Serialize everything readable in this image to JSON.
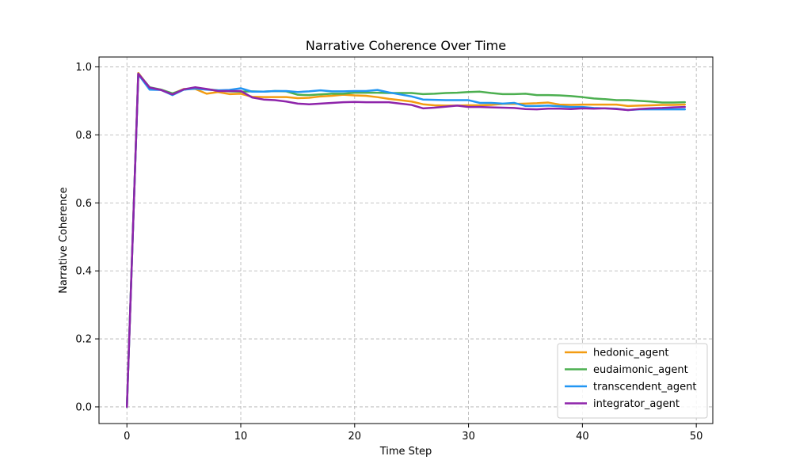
{
  "chart_data": {
    "type": "line",
    "title": "Narrative Coherence Over Time",
    "xlabel": "Time Step",
    "ylabel": "Narrative Coherence",
    "xlim": [
      -2.45,
      51.45
    ],
    "ylim": [
      -0.049,
      1.029
    ],
    "xticks": [
      0,
      10,
      20,
      30,
      40,
      50
    ],
    "yticks": [
      0.0,
      0.2,
      0.4,
      0.6,
      0.8,
      1.0
    ],
    "xtick_labels": [
      "0",
      "10",
      "20",
      "30",
      "40",
      "50"
    ],
    "ytick_labels": [
      "0.0",
      "0.2",
      "0.4",
      "0.6",
      "0.8",
      "1.0"
    ],
    "grid": true,
    "legend_position": "lower-right",
    "x": [
      0,
      1,
      2,
      3,
      4,
      5,
      6,
      7,
      8,
      9,
      10,
      11,
      12,
      13,
      14,
      15,
      16,
      17,
      18,
      19,
      20,
      21,
      22,
      23,
      24,
      25,
      26,
      27,
      28,
      29,
      30,
      31,
      32,
      33,
      34,
      35,
      36,
      37,
      38,
      39,
      40,
      41,
      42,
      43,
      44,
      45,
      46,
      47,
      48,
      49
    ],
    "series": [
      {
        "name": "hedonic_agent",
        "color": "#f39c12",
        "values": [
          0.0,
          0.982,
          0.938,
          0.933,
          0.921,
          0.935,
          0.935,
          0.921,
          0.926,
          0.92,
          0.921,
          0.912,
          0.911,
          0.911,
          0.911,
          0.908,
          0.909,
          0.913,
          0.915,
          0.918,
          0.916,
          0.915,
          0.911,
          0.906,
          0.902,
          0.898,
          0.89,
          0.887,
          0.886,
          0.886,
          0.887,
          0.887,
          0.888,
          0.891,
          0.891,
          0.892,
          0.893,
          0.895,
          0.889,
          0.888,
          0.889,
          0.889,
          0.889,
          0.889,
          0.885,
          0.886,
          0.887,
          0.888,
          0.888,
          0.889
        ]
      },
      {
        "name": "eudaimonic_agent",
        "color": "#4caf50",
        "values": [
          0.0,
          0.98,
          0.94,
          0.933,
          0.922,
          0.933,
          0.938,
          0.934,
          0.931,
          0.928,
          0.927,
          0.928,
          0.927,
          0.929,
          0.928,
          0.918,
          0.917,
          0.919,
          0.921,
          0.921,
          0.924,
          0.924,
          0.924,
          0.923,
          0.923,
          0.923,
          0.92,
          0.921,
          0.923,
          0.924,
          0.926,
          0.927,
          0.923,
          0.92,
          0.92,
          0.921,
          0.917,
          0.917,
          0.916,
          0.914,
          0.911,
          0.907,
          0.905,
          0.902,
          0.902,
          0.9,
          0.898,
          0.895,
          0.895,
          0.896
        ]
      },
      {
        "name": "transcendent_agent",
        "color": "#2196f3",
        "values": [
          0.0,
          0.978,
          0.933,
          0.932,
          0.917,
          0.933,
          0.936,
          0.933,
          0.931,
          0.932,
          0.937,
          0.927,
          0.927,
          0.929,
          0.929,
          0.926,
          0.928,
          0.931,
          0.928,
          0.928,
          0.929,
          0.929,
          0.932,
          0.925,
          0.919,
          0.913,
          0.904,
          0.903,
          0.902,
          0.902,
          0.902,
          0.894,
          0.894,
          0.892,
          0.894,
          0.885,
          0.885,
          0.886,
          0.884,
          0.882,
          0.882,
          0.879,
          0.878,
          0.877,
          0.873,
          0.875,
          0.875,
          0.875,
          0.875,
          0.875
        ]
      },
      {
        "name": "integrator_agent",
        "color": "#8e24aa",
        "values": [
          0.0,
          0.98,
          0.939,
          0.932,
          0.919,
          0.934,
          0.94,
          0.935,
          0.929,
          0.929,
          0.929,
          0.91,
          0.904,
          0.902,
          0.898,
          0.892,
          0.89,
          0.892,
          0.894,
          0.896,
          0.897,
          0.896,
          0.896,
          0.896,
          0.892,
          0.888,
          0.878,
          0.88,
          0.883,
          0.886,
          0.882,
          0.882,
          0.881,
          0.88,
          0.879,
          0.876,
          0.875,
          0.877,
          0.877,
          0.876,
          0.878,
          0.877,
          0.878,
          0.876,
          0.873,
          0.876,
          0.878,
          0.879,
          0.881,
          0.882
        ]
      }
    ]
  }
}
